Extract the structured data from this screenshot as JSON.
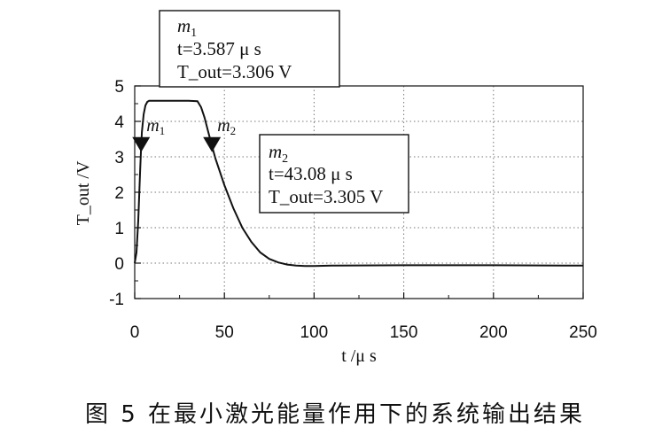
{
  "chart_data": {
    "type": "line",
    "xlabel": "t /μ s",
    "ylabel": "T_out /V",
    "xlim": [
      0,
      250
    ],
    "ylim": [
      -1,
      5
    ],
    "x_ticks": [
      "0",
      "50",
      "100",
      "150",
      "200",
      "250"
    ],
    "y_ticks": [
      "-1",
      "0",
      "1",
      "2",
      "3",
      "4",
      "5"
    ],
    "grid": "dotted",
    "series": [
      {
        "x": [
          0,
          1,
          2,
          3,
          3.587,
          4,
          5,
          6,
          7,
          8,
          10,
          20,
          30,
          35,
          37,
          39,
          41,
          43.08,
          45,
          50,
          55,
          60,
          65,
          70,
          75,
          80,
          85,
          90,
          95,
          100,
          110,
          150,
          200,
          250
        ],
        "y": [
          0,
          0.3,
          1.2,
          2.6,
          3.306,
          3.7,
          4.2,
          4.45,
          4.55,
          4.58,
          4.58,
          4.58,
          4.58,
          4.57,
          4.4,
          4.1,
          3.7,
          3.305,
          2.95,
          2.2,
          1.55,
          1.0,
          0.6,
          0.3,
          0.12,
          0.02,
          -0.04,
          -0.07,
          -0.08,
          -0.08,
          -0.07,
          -0.06,
          -0.06,
          -0.07
        ]
      }
    ],
    "markers": [
      {
        "name": "m1",
        "x": 3.587,
        "y": 3.306,
        "label_t": "t=3.587 μ s",
        "label_v": "T_out=3.306 V"
      },
      {
        "name": "m2",
        "x": 43.08,
        "y": 3.305,
        "label_t": "t=43.08 μ s",
        "label_v": "T_out=3.305 V"
      }
    ]
  },
  "marker_boxes": {
    "m1": {
      "title": "m",
      "sub": "1",
      "line1": "t=3.587 μ s",
      "line2": "T_out=3.306 V"
    },
    "m2": {
      "title": "m",
      "sub": "2",
      "line1": "t=43.08 μ s",
      "line2": "T_out=3.305 V"
    }
  },
  "caption": "图 5   在最小激光能量作用下的系统输出结果"
}
